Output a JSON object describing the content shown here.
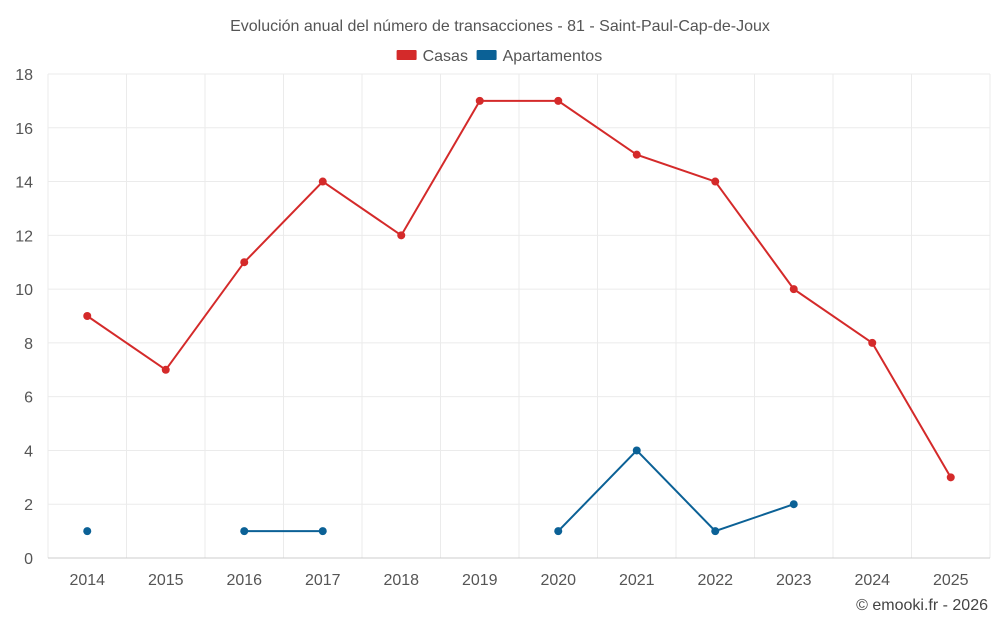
{
  "chart_data": {
    "type": "line",
    "title": "Evolución anual del número de transacciones - 81 - Saint-Paul-Cap-de-Joux",
    "xlabel": "",
    "ylabel": "",
    "x": [
      "2014",
      "2015",
      "2016",
      "2017",
      "2018",
      "2019",
      "2020",
      "2021",
      "2022",
      "2023",
      "2024",
      "2025"
    ],
    "ylim": [
      0,
      18
    ],
    "yticks": [
      0,
      2,
      4,
      6,
      8,
      10,
      12,
      14,
      16,
      18
    ],
    "grid": true,
    "legend_position": "top-center",
    "series": [
      {
        "name": "Casas",
        "color": "#d42a2a",
        "values": [
          9,
          7,
          11,
          14,
          12,
          17,
          17,
          15,
          14,
          10,
          8,
          3
        ]
      },
      {
        "name": "Apartamentos",
        "color": "#0b6196",
        "values": [
          1,
          null,
          1,
          1,
          null,
          null,
          1,
          4,
          1,
          2,
          null,
          null
        ]
      }
    ]
  },
  "credit": "© emooki.fr - 2026"
}
